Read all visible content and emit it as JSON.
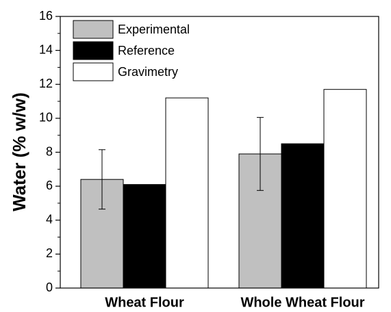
{
  "chart_data": {
    "type": "bar",
    "ylabel": "Water (% w/w)",
    "categories": [
      "Wheat Flour",
      "Whole Wheat Flour"
    ],
    "series": [
      {
        "name": "Experimental",
        "color": "#c0c0c0",
        "values": [
          6.4,
          7.9
        ],
        "errors": [
          1.75,
          2.15
        ]
      },
      {
        "name": "Reference",
        "color": "#000000",
        "values": [
          6.1,
          8.5
        ]
      },
      {
        "name": "Gravimetry",
        "color": "#ffffff",
        "values": [
          11.2,
          11.7
        ]
      }
    ],
    "ylim": [
      0,
      16
    ],
    "yticks": [
      0,
      2,
      4,
      6,
      8,
      10,
      12,
      14,
      16
    ],
    "legend": "upper left"
  }
}
